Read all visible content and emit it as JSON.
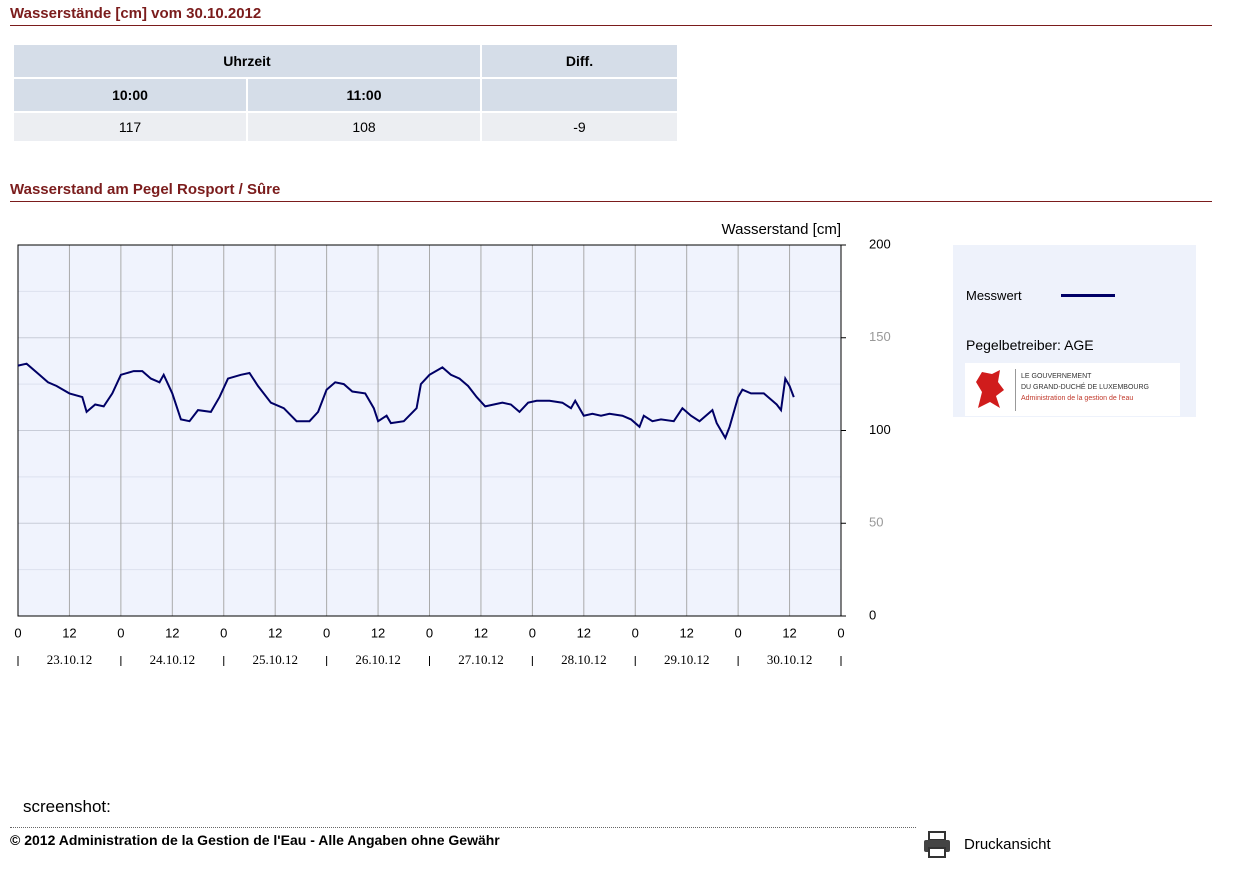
{
  "header": {
    "title": "Wasserstände [cm] vom 30.10.2012"
  },
  "table": {
    "head": [
      "Uhrzeit",
      "Diff."
    ],
    "times": [
      "10:00",
      "11:00"
    ],
    "row": [
      "117",
      "108",
      "-9"
    ]
  },
  "section_title": "Wasserstand am Pegel Rosport / Sûre",
  "chart_data": {
    "type": "line",
    "y_label": "Wasserstand [cm]",
    "xlim": [
      0,
      192
    ],
    "xticks": [
      0,
      12,
      {
        "value": 24,
        "label": "0"
      },
      {
        "value": 36,
        "label": "12"
      },
      {
        "value": 48,
        "label": "0"
      },
      {
        "value": 60,
        "label": "12"
      },
      {
        "value": 72,
        "label": "0"
      },
      {
        "value": 84,
        "label": "12"
      },
      {
        "value": 96,
        "label": "0"
      },
      {
        "value": 108,
        "label": "12"
      },
      {
        "value": 120,
        "label": "0"
      },
      {
        "value": 132,
        "label": "12"
      },
      {
        "value": 144,
        "label": "0"
      },
      {
        "value": 156,
        "label": "12"
      },
      {
        "value": 168,
        "label": "0"
      },
      {
        "value": 180,
        "label": "12"
      },
      {
        "value": 192,
        "label": "0"
      }
    ],
    "day_labels": [
      "23.10.12",
      "24.10.12",
      "25.10.12",
      "26.10.12",
      "27.10.12",
      "28.10.12",
      "29.10.12",
      "30.10.12"
    ],
    "ylim": [
      0,
      200
    ],
    "yticks": [
      0,
      50,
      100,
      150,
      200
    ],
    "y_minor_ticks": [
      25,
      75,
      125,
      175
    ],
    "grid": true,
    "x": [
      0,
      2,
      5,
      7,
      9,
      12,
      15,
      16,
      18,
      20,
      22,
      24,
      27,
      29,
      31,
      33,
      34,
      36,
      38,
      40,
      42,
      45,
      47,
      49,
      52,
      54,
      56,
      59,
      62,
      65,
      68,
      70,
      72,
      74,
      76,
      78,
      81,
      83,
      84,
      86,
      87,
      90,
      93,
      94,
      96,
      99,
      101,
      103,
      105,
      107,
      109,
      111,
      113,
      115,
      117,
      119,
      121,
      124,
      127,
      129,
      130,
      132,
      134,
      136,
      138,
      141,
      143,
      145,
      146,
      148,
      150,
      153,
      155,
      157,
      159,
      162,
      163,
      165,
      166,
      168,
      169,
      171,
      174,
      176,
      177,
      178,
      179,
      180,
      181
    ],
    "series": [
      {
        "name": "Messwert",
        "color": "#000066",
        "values": [
          135,
          136,
          130,
          126,
          124,
          120,
          118,
          110,
          114,
          113,
          120,
          130,
          132,
          132,
          128,
          126,
          130,
          120,
          106,
          105,
          111,
          110,
          118,
          128,
          130,
          131,
          124,
          115,
          112,
          105,
          105,
          110,
          122,
          126,
          125,
          121,
          120,
          112,
          105,
          108,
          104,
          105,
          112,
          125,
          130,
          134,
          130,
          128,
          124,
          118,
          113,
          114,
          115,
          114,
          110,
          115,
          116,
          116,
          115,
          112,
          116,
          108,
          109,
          108,
          109,
          108,
          106,
          102,
          108,
          105,
          106,
          105,
          112,
          108,
          105,
          111,
          104,
          96,
          102,
          118,
          122,
          120,
          120,
          116,
          114,
          111,
          128,
          124,
          118
        ]
      }
    ]
  },
  "legend": {
    "operator": "Pegelbetreiber: AGE"
  },
  "logo": {
    "lines": [
      "LE GOUVERNEMENT",
      "DU GRAND-DUCHÉ DE LUXEMBOURG",
      "Administration de la gestion de l'eau"
    ]
  },
  "note": "screenshot:",
  "footer": {
    "copyright": "© 2012 Administration de la Gestion de l'Eau - Alle Angaben ohne Gewähr",
    "print": "Druckansicht"
  }
}
